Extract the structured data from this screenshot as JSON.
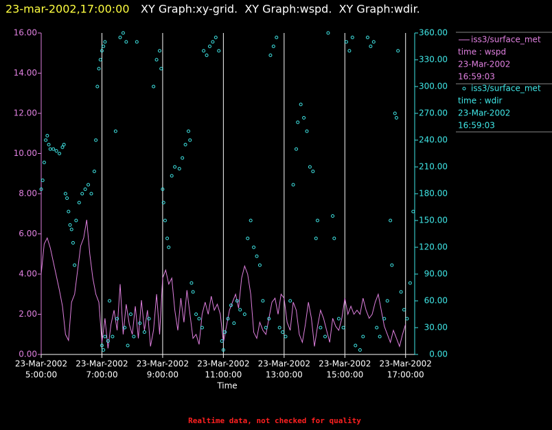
{
  "chart_data": {
    "type": "line",
    "title": "23-mar-2002,17:00:00",
    "subtitle": "XY Graph:xy-grid.  XY Graph:wspd.  XY Graph:wdir.",
    "x_label": "Time",
    "note": "Realtime data, not checked for quality",
    "grid": "x",
    "xlim": [
      5,
      17.3
    ],
    "xticks": [
      {
        "value": 5,
        "date": "23-Mar-2002",
        "label": "5:00:00"
      },
      {
        "value": 7,
        "date": "23-Mar-2002",
        "label": "7:00:00"
      },
      {
        "value": 9,
        "date": "23-Mar-2002",
        "label": "9:00:00"
      },
      {
        "value": 11,
        "date": "23-Mar-2002",
        "label": "11:00:00"
      },
      {
        "value": 13,
        "date": "23-Mar-2002",
        "label": "13:00:00"
      },
      {
        "value": 15,
        "date": "23-Mar-2002",
        "label": "15:00:00"
      },
      {
        "value": 17,
        "date": "23-Mar-2002",
        "label": "17:00:00"
      }
    ],
    "ylim": [
      0,
      16
    ],
    "yticks": [
      {
        "value": 0,
        "label": "0.00"
      },
      {
        "value": 2,
        "label": "2.00"
      },
      {
        "value": 4,
        "label": "4.00"
      },
      {
        "value": 6,
        "label": "6.00"
      },
      {
        "value": 8,
        "label": "8.00"
      },
      {
        "value": 10,
        "label": "10.00"
      },
      {
        "value": 12,
        "label": "12.00"
      },
      {
        "value": 14,
        "label": "14.00"
      },
      {
        "value": 16,
        "label": "16.00"
      }
    ],
    "y2lim": [
      0,
      360
    ],
    "y2ticks": [
      {
        "value": 0,
        "label": "0.00"
      },
      {
        "value": 30,
        "label": "30.00"
      },
      {
        "value": 60,
        "label": "60.00"
      },
      {
        "value": 90,
        "label": "90.00"
      },
      {
        "value": 120,
        "label": "120.00"
      },
      {
        "value": 150,
        "label": "150.00"
      },
      {
        "value": 180,
        "label": "180.00"
      },
      {
        "value": 210,
        "label": "210.00"
      },
      {
        "value": 240,
        "label": "240.00"
      },
      {
        "value": 270,
        "label": "270.00"
      },
      {
        "value": 300,
        "label": "300.00"
      },
      {
        "value": 330,
        "label": "330.00"
      },
      {
        "value": 360,
        "label": "360.00"
      }
    ],
    "y_color": "#e080e0",
    "y2_color": "#40e8e8",
    "series": [
      {
        "name": "iss3/surface_met",
        "label": "time : wspd",
        "date": "23-Mar-2002",
        "time": "16:59:03",
        "type": "line",
        "color": "#e080e0",
        "axis": "y",
        "x": [
          5.0,
          5.1,
          5.2,
          5.3,
          5.4,
          5.5,
          5.6,
          5.7,
          5.8,
          5.9,
          6.0,
          6.1,
          6.2,
          6.3,
          6.4,
          6.5,
          6.6,
          6.7,
          6.8,
          6.9,
          7.0,
          7.1,
          7.2,
          7.3,
          7.4,
          7.5,
          7.6,
          7.7,
          7.8,
          7.9,
          8.0,
          8.1,
          8.2,
          8.3,
          8.4,
          8.5,
          8.6,
          8.7,
          8.8,
          8.9,
          9.0,
          9.1,
          9.2,
          9.3,
          9.4,
          9.5,
          9.6,
          9.7,
          9.8,
          9.9,
          10.0,
          10.1,
          10.2,
          10.3,
          10.4,
          10.5,
          10.6,
          10.7,
          10.8,
          10.9,
          11.0,
          11.1,
          11.2,
          11.3,
          11.4,
          11.5,
          11.6,
          11.7,
          11.8,
          11.9,
          12.0,
          12.1,
          12.2,
          12.3,
          12.4,
          12.5,
          12.6,
          12.7,
          12.8,
          12.9,
          13.0,
          13.1,
          13.2,
          13.3,
          13.4,
          13.5,
          13.6,
          13.7,
          13.8,
          13.9,
          14.0,
          14.1,
          14.2,
          14.3,
          14.4,
          14.5,
          14.6,
          14.7,
          14.8,
          14.9,
          15.0,
          15.1,
          15.2,
          15.3,
          15.4,
          15.5,
          15.6,
          15.7,
          15.8,
          15.9,
          16.0,
          16.1,
          16.2,
          16.3,
          16.4,
          16.5,
          16.6,
          16.7,
          16.8,
          16.9,
          17.0
        ],
        "values": [
          4.0,
          5.5,
          5.8,
          5.3,
          4.6,
          3.9,
          3.2,
          2.4,
          1.0,
          0.7,
          2.6,
          3.0,
          4.2,
          5.4,
          5.8,
          6.7,
          5.0,
          3.8,
          3.0,
          2.6,
          0.6,
          1.8,
          0.3,
          1.5,
          2.2,
          1.2,
          3.5,
          1.0,
          2.5,
          1.5,
          1.0,
          2.4,
          0.8,
          2.7,
          1.2,
          2.2,
          0.4,
          1.2,
          3.0,
          1.0,
          3.8,
          4.2,
          3.5,
          3.8,
          2.2,
          1.2,
          2.8,
          1.6,
          3.2,
          2.0,
          0.8,
          1.0,
          0.5,
          2.0,
          2.6,
          2.0,
          2.9,
          2.2,
          2.5,
          2.0,
          0.6,
          1.4,
          2.2,
          2.6,
          3.0,
          2.3,
          3.8,
          4.4,
          4.0,
          3.0,
          1.1,
          0.8,
          1.6,
          1.2,
          1.0,
          1.8,
          2.6,
          2.8,
          2.0,
          3.0,
          2.8,
          1.6,
          1.2,
          2.6,
          2.2,
          1.0,
          0.6,
          1.5,
          2.6,
          1.8,
          0.4,
          1.4,
          2.2,
          1.8,
          1.2,
          0.6,
          1.8,
          1.4,
          1.2,
          1.8,
          2.8,
          2.0,
          2.4,
          2.0,
          2.2,
          2.0,
          2.8,
          2.2,
          1.8,
          2.0,
          2.6,
          3.0,
          2.2,
          1.4,
          1.0,
          0.6,
          1.2,
          0.8,
          0.4,
          1.0,
          1.5
        ]
      },
      {
        "name": "iss3/surface_met",
        "label": "time : wdir",
        "date": "23-Mar-2002",
        "time": "16:59:03",
        "type": "scatter",
        "color": "#40e8e8",
        "axis": "y2",
        "x": [
          5.0,
          5.05,
          5.1,
          5.15,
          5.2,
          5.25,
          5.3,
          5.4,
          5.5,
          5.6,
          5.7,
          5.75,
          5.8,
          5.85,
          5.9,
          5.95,
          6.0,
          6.05,
          6.1,
          6.15,
          6.25,
          6.35,
          6.45,
          6.55,
          6.65,
          6.75,
          6.8,
          6.85,
          6.9,
          6.95,
          7.0,
          7.05,
          7.1,
          7.0,
          7.05,
          7.1,
          7.2,
          7.25,
          7.35,
          7.45,
          7.5,
          7.6,
          7.7,
          7.8,
          7.75,
          7.85,
          7.95,
          8.05,
          8.15,
          8.25,
          8.4,
          8.55,
          8.7,
          8.8,
          8.9,
          8.95,
          9.0,
          9.03,
          9.08,
          9.15,
          9.2,
          9.3,
          9.4,
          9.55,
          9.65,
          9.75,
          9.85,
          9.9,
          9.95,
          10.0,
          10.1,
          10.2,
          10.3,
          10.35,
          10.45,
          10.55,
          10.65,
          10.75,
          10.85,
          10.95,
          11.0,
          11.05,
          11.15,
          11.25,
          11.35,
          11.45,
          11.55,
          11.7,
          11.8,
          11.9,
          12.0,
          12.1,
          12.2,
          12.3,
          12.4,
          12.5,
          12.55,
          12.65,
          12.75,
          12.85,
          12.95,
          13.05,
          13.2,
          13.3,
          13.4,
          13.45,
          13.55,
          13.65,
          13.75,
          13.85,
          13.95,
          14.05,
          14.1,
          14.2,
          14.35,
          14.45,
          14.6,
          14.65,
          14.8,
          14.95,
          15.05,
          15.15,
          15.25,
          15.35,
          15.5,
          15.6,
          15.75,
          15.85,
          15.95,
          16.05,
          16.15,
          16.3,
          16.4,
          16.5,
          16.55,
          16.65,
          16.7,
          16.75,
          16.85,
          16.95,
          17.05,
          17.15,
          17.25
        ],
        "values": [
          185,
          195,
          215,
          240,
          245,
          235,
          230,
          230,
          228,
          225,
          232,
          235,
          180,
          175,
          160,
          145,
          140,
          125,
          100,
          150,
          170,
          180,
          185,
          190,
          180,
          205,
          240,
          300,
          320,
          330,
          340,
          345,
          350,
          10,
          5,
          20,
          15,
          60,
          20,
          250,
          40,
          355,
          360,
          350,
          30,
          10,
          45,
          20,
          350,
          35,
          25,
          40,
          300,
          330,
          340,
          320,
          185,
          170,
          150,
          130,
          120,
          200,
          210,
          208,
          220,
          235,
          250,
          240,
          80,
          70,
          45,
          40,
          30,
          340,
          335,
          345,
          350,
          355,
          340,
          15,
          5,
          25,
          40,
          55,
          35,
          60,
          50,
          45,
          130,
          150,
          120,
          110,
          100,
          60,
          30,
          40,
          335,
          345,
          355,
          30,
          25,
          20,
          60,
          190,
          230,
          260,
          280,
          265,
          250,
          210,
          205,
          130,
          150,
          30,
          20,
          360,
          155,
          130,
          40,
          30,
          350,
          340,
          355,
          10,
          5,
          20,
          355,
          345,
          350,
          30,
          20,
          40,
          60,
          150,
          100,
          270,
          265,
          340,
          70,
          50,
          40,
          80,
          160
        ]
      }
    ]
  }
}
